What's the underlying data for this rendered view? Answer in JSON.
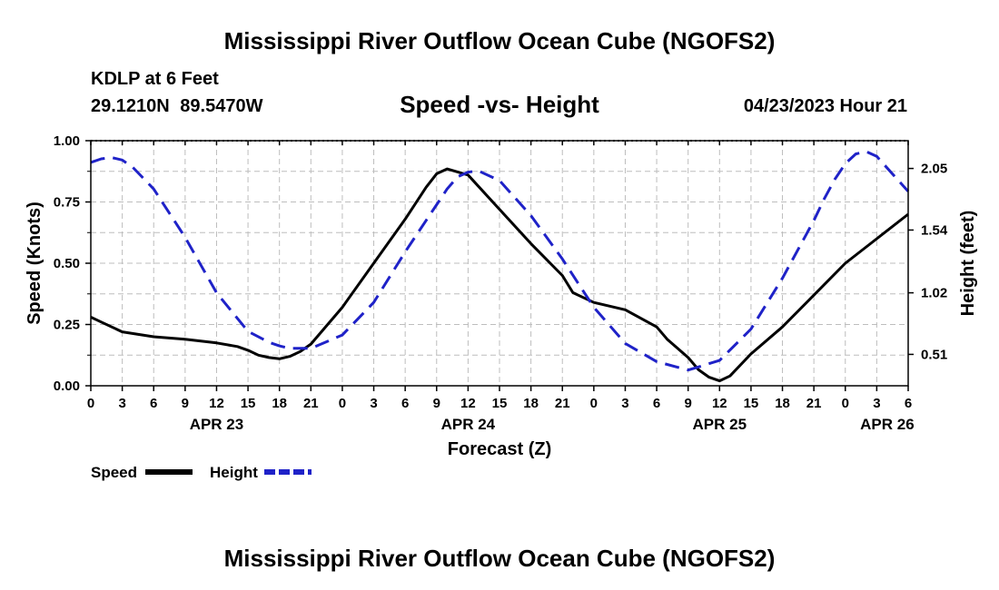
{
  "page": {
    "main_title": "Mississippi River Outflow Ocean Cube (NGOFS2)",
    "footer_title": "Mississippi River Outflow Ocean Cube (NGOFS2)",
    "station": "KDLP at 6 Feet",
    "coordinates": "29.1210N 89.5470W",
    "subtitle": "Speed -vs- Height",
    "datetime": "04/23/2023 Hour 21"
  },
  "chart_data": {
    "type": "line",
    "title": "Speed -vs- Height",
    "xlabel": "Forecast (Z)",
    "ylabel": "Speed (Knots)",
    "y2label": "Height (feet)",
    "x_unit": "hours since APR 23 00Z",
    "xlim": [
      0,
      78
    ],
    "ylim": [
      0,
      1
    ],
    "y2lim": [
      0.25,
      2.28
    ],
    "x_ticks": [
      0,
      3,
      6,
      9,
      12,
      15,
      18,
      21,
      24,
      27,
      30,
      33,
      36,
      39,
      42,
      45,
      48,
      51,
      54,
      57,
      60,
      63,
      66,
      69,
      72,
      75,
      78
    ],
    "x_tick_labels": [
      "0",
      "3",
      "6",
      "9",
      "12",
      "15",
      "18",
      "21",
      "0",
      "3",
      "6",
      "9",
      "12",
      "15",
      "18",
      "21",
      "0",
      "3",
      "6",
      "9",
      "12",
      "15",
      "18",
      "21",
      "0",
      "3",
      "6"
    ],
    "y_ticks": [
      0,
      0.25,
      0.5,
      0.75,
      1.0
    ],
    "y_tick_labels": [
      "0.00",
      "0.25",
      "0.50",
      "0.75",
      "1.00"
    ],
    "y2_ticks": [
      0.51,
      1.02,
      1.54,
      2.05
    ],
    "y2_tick_labels": [
      "0.51",
      "1.02",
      "1.54",
      "2.05"
    ],
    "date_labels": [
      {
        "x": 12,
        "label": "APR 23"
      },
      {
        "x": 36,
        "label": "APR 24"
      },
      {
        "x": 60,
        "label": "APR 25"
      },
      {
        "x": 76,
        "label": "APR 26"
      }
    ],
    "grid": true,
    "legend_position": "bottom-left",
    "series": [
      {
        "name": "Speed",
        "axis": "left",
        "color": "#000000",
        "style": "solid",
        "x": [
          0,
          1,
          3,
          6,
          9,
          12,
          14,
          15,
          16,
          17,
          18,
          19,
          20,
          21,
          24,
          27,
          30,
          32,
          33,
          34,
          36,
          39,
          42,
          45,
          46,
          48,
          51,
          54,
          55,
          57,
          58,
          59,
          60,
          61,
          63,
          66,
          69,
          72,
          75,
          78
        ],
        "values": [
          0.28,
          0.26,
          0.22,
          0.2,
          0.19,
          0.175,
          0.16,
          0.145,
          0.125,
          0.115,
          0.11,
          0.12,
          0.14,
          0.17,
          0.32,
          0.5,
          0.68,
          0.81,
          0.865,
          0.885,
          0.86,
          0.72,
          0.58,
          0.45,
          0.38,
          0.34,
          0.31,
          0.24,
          0.19,
          0.115,
          0.065,
          0.035,
          0.02,
          0.04,
          0.13,
          0.24,
          0.37,
          0.5,
          0.6,
          0.7
        ]
      },
      {
        "name": "Height",
        "axis": "right",
        "color": "#1f22c8",
        "style": "dashed",
        "x": [
          0,
          1,
          2,
          3,
          4,
          6,
          9,
          12,
          15,
          17,
          18,
          19,
          21,
          24,
          27,
          30,
          33,
          34,
          35,
          36,
          37,
          39,
          42,
          45,
          48,
          51,
          54,
          57,
          60,
          63,
          66,
          69,
          70,
          71,
          72,
          73,
          74,
          75,
          78
        ],
        "values": [
          2.1,
          2.13,
          2.14,
          2.12,
          2.06,
          1.88,
          1.48,
          1.02,
          0.7,
          0.61,
          0.58,
          0.56,
          0.56,
          0.67,
          0.94,
          1.36,
          1.75,
          1.88,
          1.98,
          2.02,
          2.03,
          1.95,
          1.66,
          1.3,
          0.9,
          0.6,
          0.45,
          0.38,
          0.46,
          0.72,
          1.14,
          1.62,
          1.8,
          1.96,
          2.09,
          2.17,
          2.19,
          2.15,
          1.86
        ]
      }
    ],
    "legend": [
      {
        "name": "Speed",
        "label": "Speed",
        "color": "#000000",
        "style": "solid"
      },
      {
        "name": "Height",
        "label": "Height",
        "color": "#1f22c8",
        "style": "dashed"
      }
    ]
  }
}
